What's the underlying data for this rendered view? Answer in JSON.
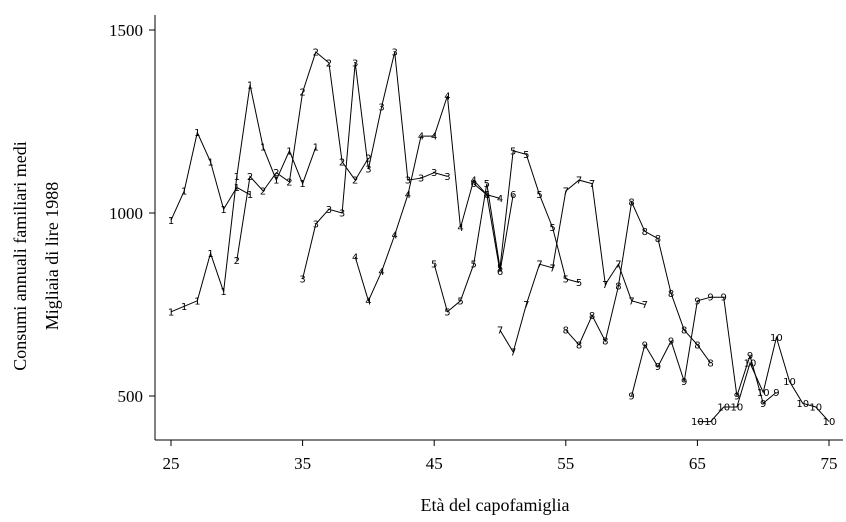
{
  "chart_data": {
    "type": "line",
    "xlabel": "Età del capofamiglia",
    "ylabel": [
      "Consumi annuali familiari medi",
      "Migliaia di lire 1988"
    ],
    "xlim": [
      24,
      76
    ],
    "ylim": [
      410,
      1560
    ],
    "xticks": [
      "25",
      "35",
      "45",
      "55",
      "65",
      "75"
    ],
    "yticks": [
      "500",
      "1000",
      "1500"
    ],
    "grid": false,
    "series": [
      {
        "name": "1",
        "points": [
          [
            25,
            980
          ],
          [
            26,
            1060
          ],
          [
            27,
            1220
          ],
          [
            28,
            1140
          ],
          [
            29,
            1010
          ],
          [
            30,
            1070
          ],
          [
            31,
            1050
          ]
        ]
      },
      {
        "name": "1",
        "points": [
          [
            25,
            730
          ],
          [
            26,
            745
          ],
          [
            27,
            760
          ],
          [
            28,
            890
          ],
          [
            29,
            785
          ],
          [
            30,
            1100
          ],
          [
            31,
            1350
          ],
          [
            32,
            1180
          ],
          [
            33,
            1090
          ],
          [
            34,
            1170
          ],
          [
            35,
            1080
          ],
          [
            36,
            1180
          ]
        ]
      },
      {
        "name": "2",
        "points": [
          [
            30,
            870
          ],
          [
            31,
            1100
          ],
          [
            32,
            1060
          ],
          [
            33,
            1110
          ],
          [
            34,
            1085
          ],
          [
            35,
            1330
          ],
          [
            36,
            1440
          ],
          [
            37,
            1410
          ],
          [
            38,
            1140
          ],
          [
            39,
            1090
          ],
          [
            40,
            1150
          ]
        ]
      },
      {
        "name": "3",
        "points": [
          [
            35,
            820
          ],
          [
            36,
            970
          ],
          [
            37,
            1010
          ],
          [
            38,
            1000
          ],
          [
            39,
            1410
          ],
          [
            40,
            1120
          ],
          [
            41,
            1290
          ],
          [
            42,
            1440
          ],
          [
            43,
            1090
          ],
          [
            44,
            1095
          ],
          [
            45,
            1110
          ],
          [
            46,
            1100
          ]
        ]
      },
      {
        "name": "4",
        "points": [
          [
            39,
            880
          ],
          [
            40,
            760
          ],
          [
            41,
            840
          ],
          [
            42,
            940
          ],
          [
            43,
            1050
          ],
          [
            44,
            1210
          ],
          [
            45,
            1210
          ],
          [
            46,
            1320
          ],
          [
            47,
            960
          ],
          [
            48,
            1090
          ],
          [
            49,
            1050
          ],
          [
            50,
            1040
          ]
        ]
      },
      {
        "name": "5",
        "points": [
          [
            45,
            860
          ],
          [
            46,
            730
          ],
          [
            47,
            760
          ],
          [
            48,
            860
          ],
          [
            49,
            1080
          ],
          [
            50,
            850
          ],
          [
            51,
            1170
          ],
          [
            52,
            1160
          ],
          [
            53,
            1050
          ],
          [
            54,
            960
          ],
          [
            55,
            820
          ],
          [
            56,
            810
          ]
        ]
      },
      {
        "name": "6",
        "points": [
          [
            48,
            1080
          ],
          [
            49,
            1050
          ],
          [
            50,
            840
          ],
          [
            51,
            1050
          ]
        ]
      },
      {
        "name": "7",
        "points": [
          [
            50,
            680
          ],
          [
            51,
            620
          ],
          [
            52,
            750
          ],
          [
            53,
            860
          ],
          [
            54,
            850
          ],
          [
            55,
            1060
          ],
          [
            56,
            1090
          ],
          [
            57,
            1080
          ],
          [
            58,
            805
          ],
          [
            59,
            860
          ],
          [
            60,
            760
          ],
          [
            61,
            750
          ]
        ]
      },
      {
        "name": "8",
        "points": [
          [
            55,
            680
          ],
          [
            56,
            640
          ],
          [
            57,
            720
          ],
          [
            58,
            650
          ],
          [
            59,
            800
          ],
          [
            60,
            1030
          ],
          [
            61,
            950
          ],
          [
            62,
            930
          ],
          [
            63,
            780
          ],
          [
            64,
            680
          ],
          [
            65,
            640
          ],
          [
            66,
            590
          ]
        ]
      },
      {
        "name": "9",
        "points": [
          [
            60,
            500
          ],
          [
            61,
            640
          ],
          [
            62,
            580
          ],
          [
            63,
            650
          ],
          [
            64,
            540
          ],
          [
            65,
            760
          ],
          [
            66,
            770
          ],
          [
            67,
            770
          ],
          [
            68,
            500
          ],
          [
            69,
            610
          ],
          [
            70,
            480
          ],
          [
            71,
            510
          ]
        ]
      },
      {
        "name": "10",
        "points": [
          [
            65,
            430
          ],
          [
            66,
            430
          ],
          [
            67,
            470
          ],
          [
            68,
            470
          ],
          [
            69,
            590
          ],
          [
            70,
            510
          ],
          [
            71,
            660
          ],
          [
            72,
            540
          ],
          [
            73,
            480
          ],
          [
            74,
            470
          ],
          [
            75,
            430
          ]
        ]
      }
    ]
  }
}
